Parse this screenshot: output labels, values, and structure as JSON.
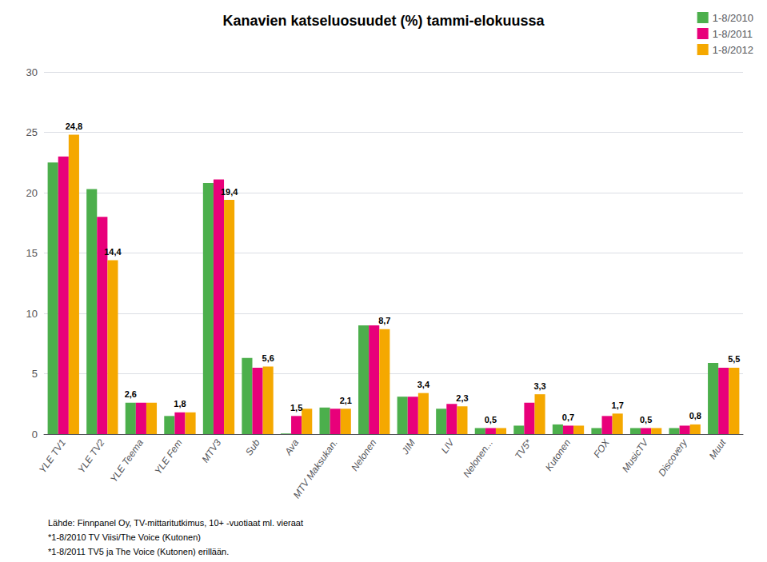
{
  "chart_data": {
    "type": "bar",
    "title": "Kanavien katseluosuudet (%) tammi-elokuussa",
    "categories": [
      "YLE TV1",
      "YLE TV2",
      "YLE Teema",
      "YLE Fem",
      "MTV3",
      "Sub",
      "Ava",
      "MTV Maksukan.",
      "Nelonen",
      "JIM",
      "LIV",
      "Nelonen...",
      "TV5*",
      "Kutonen",
      "FOX",
      "MusicTV",
      "Discovery",
      "Muut"
    ],
    "series": [
      {
        "name": "1-8/2010",
        "color": "#4caf4c",
        "values": [
          22.5,
          20.3,
          2.6,
          1.5,
          20.8,
          6.3,
          0.05,
          2.2,
          9.0,
          3.1,
          2.1,
          0.5,
          0.7,
          0.8,
          0.5,
          0.5,
          0.5,
          5.9
        ]
      },
      {
        "name": "1-8/2011",
        "color": "#e8007a",
        "values": [
          23.0,
          18.0,
          2.6,
          1.8,
          21.1,
          5.5,
          1.5,
          2.1,
          9.0,
          3.1,
          2.5,
          0.5,
          2.6,
          0.7,
          1.5,
          0.5,
          0.7,
          5.5
        ]
      },
      {
        "name": "1-8/2012",
        "color": "#f5a800",
        "values": [
          24.8,
          14.4,
          2.6,
          1.8,
          19.4,
          5.6,
          2.1,
          2.1,
          8.7,
          3.4,
          2.3,
          0.5,
          3.3,
          0.7,
          1.7,
          0.5,
          0.8,
          5.5
        ]
      }
    ],
    "annotations": [
      {
        "category": "YLE TV1",
        "series": "1-8/2012",
        "value": 24.8,
        "label": "24,8"
      },
      {
        "category": "YLE TV2",
        "series": "1-8/2012",
        "value": 14.4,
        "label": "14,4"
      },
      {
        "category": "YLE Teema",
        "series": "1-8/2010",
        "value": 2.6,
        "label": "2,6"
      },
      {
        "category": "YLE Fem",
        "series": "1-8/2011",
        "value": 1.8,
        "label": "1,8"
      },
      {
        "category": "MTV3",
        "series": "1-8/2012",
        "value": 19.4,
        "label": "19,4"
      },
      {
        "category": "Sub",
        "series": "1-8/2012",
        "value": 5.6,
        "label": "5,6"
      },
      {
        "category": "Ava",
        "series": "1-8/2011",
        "value": 1.5,
        "label": "1,5"
      },
      {
        "category": "MTV Maksukan.",
        "series": "1-8/2012",
        "value": 2.1,
        "label": "2,1"
      },
      {
        "category": "Nelonen",
        "series": "1-8/2012",
        "value": 8.7,
        "label": "8,7"
      },
      {
        "category": "JIM",
        "series": "1-8/2012",
        "value": 3.4,
        "label": "3,4"
      },
      {
        "category": "LIV",
        "series": "1-8/2012",
        "value": 2.3,
        "label": "2,3"
      },
      {
        "category": "Nelonen...",
        "series": "1-8/2011",
        "value": 0.5,
        "label": "0,5"
      },
      {
        "category": "TV5*",
        "series": "1-8/2012",
        "value": 3.3,
        "label": "3,3"
      },
      {
        "category": "Kutonen",
        "series": "1-8/2011",
        "value": 0.7,
        "label": "0,7"
      },
      {
        "category": "FOX",
        "series": "1-8/2012",
        "value": 1.7,
        "label": "1,7"
      },
      {
        "category": "MusicTV",
        "series": "1-8/2011",
        "value": 0.5,
        "label": "0,5"
      },
      {
        "category": "Discovery",
        "series": "1-8/2012",
        "value": 0.8,
        "label": "0,8"
      },
      {
        "category": "Muut",
        "series": "1-8/2012",
        "value": 5.5,
        "label": "5,5"
      }
    ],
    "footnotes": [
      "Lähde: Finnpanel Oy, TV-mittaritutkimus, 10+ -vuotiaat ml. vieraat",
      "*1-8/2010 TV Viisi/The Voice (Kutonen)",
      "*1-8/2011 TV5 ja The Voice (Kutonen) erillään."
    ],
    "ylim": [
      0,
      30
    ],
    "yticks": [
      0,
      5,
      10,
      15,
      20,
      25,
      30
    ],
    "grid": true,
    "legend": "upper right"
  }
}
